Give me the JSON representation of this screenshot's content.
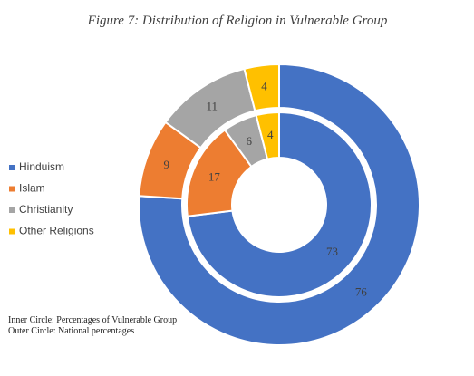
{
  "chart_data": {
    "type": "pie",
    "subtype": "nested-donut",
    "title": "Figure 7: Distribution of Religion in Vulnerable Group",
    "categories": [
      "Hinduism",
      "Islam",
      "Christianity",
      "Other Religions"
    ],
    "colors": [
      "#4472C4",
      "#ED7D31",
      "#A5A5A5",
      "#FFC000"
    ],
    "series": [
      {
        "ring": "inner",
        "values": [
          73,
          17,
          6,
          4
        ]
      },
      {
        "ring": "outer",
        "values": [
          76,
          9,
          11,
          4
        ]
      }
    ],
    "legend_position": "left",
    "notes": [
      "Inner Circle: Percentages of Vulnerable Group",
      "Outer Circle: National percentages"
    ]
  }
}
